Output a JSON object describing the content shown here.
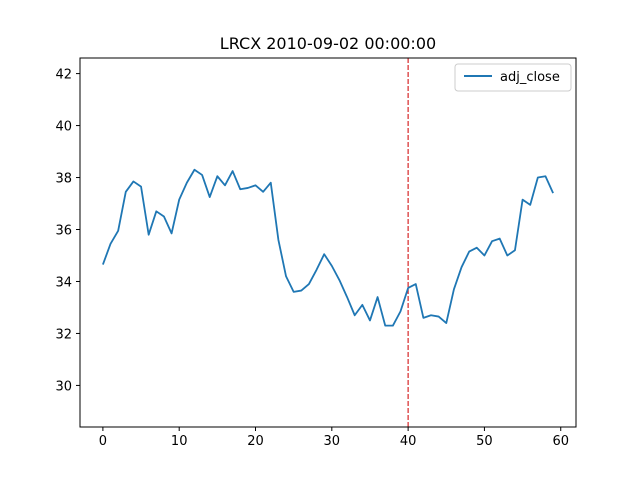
{
  "chart_data": {
    "type": "line",
    "title": "LRCX 2010-09-02 00:00:00",
    "xlabel": "",
    "ylabel": "",
    "xlim": [
      -3,
      62
    ],
    "ylim": [
      28.4,
      42.6
    ],
    "xticks": [
      0,
      10,
      20,
      30,
      40,
      50,
      60
    ],
    "yticks": [
      30,
      32,
      34,
      36,
      38,
      40,
      42
    ],
    "grid": false,
    "legend": {
      "position": "top-right",
      "entries": [
        "adj_close"
      ]
    },
    "vline": {
      "x": 40,
      "color": "#d62728",
      "style": "dashed"
    },
    "series": [
      {
        "name": "adj_close",
        "color": "#1f77b4",
        "x": [
          0,
          1,
          2,
          3,
          4,
          5,
          6,
          7,
          8,
          9,
          10,
          11,
          12,
          13,
          14,
          15,
          16,
          17,
          18,
          19,
          20,
          21,
          22,
          23,
          24,
          25,
          26,
          27,
          28,
          29,
          30,
          31,
          32,
          33,
          34,
          35,
          36,
          37,
          38,
          39,
          40,
          41,
          42,
          43,
          44,
          45,
          46,
          47,
          48,
          49,
          50,
          51,
          52,
          53,
          54,
          55,
          56,
          57,
          58,
          59
        ],
        "values": [
          34.65,
          35.45,
          35.95,
          37.45,
          37.85,
          37.65,
          35.8,
          36.7,
          36.5,
          35.85,
          37.15,
          37.8,
          38.3,
          38.1,
          37.25,
          38.05,
          37.7,
          38.25,
          37.55,
          37.6,
          37.7,
          37.45,
          37.8,
          35.6,
          34.2,
          33.6,
          33.65,
          33.9,
          34.45,
          35.05,
          34.6,
          34.05,
          33.4,
          32.7,
          33.1,
          32.5,
          33.4,
          32.3,
          32.3,
          32.85,
          33.75,
          33.9,
          32.6,
          32.7,
          32.65,
          32.4,
          33.7,
          34.55,
          35.15,
          35.3,
          35.0,
          35.55,
          35.65,
          35.0,
          35.2,
          37.15,
          36.95,
          38.0,
          38.05,
          37.4
        ]
      }
    ]
  }
}
